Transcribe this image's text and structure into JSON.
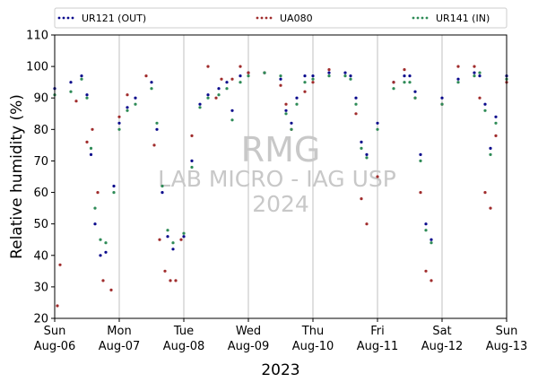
{
  "chart_data": {
    "type": "scatter",
    "xlabel": "2023",
    "ylabel": "Relative humidity (%)",
    "ylim": [
      20,
      110
    ],
    "yticks": [
      20,
      30,
      40,
      50,
      60,
      70,
      80,
      90,
      100,
      110
    ],
    "xlim": [
      "2023-08-06",
      "2023-08-13"
    ],
    "xticks": [
      {
        "date": "2023-08-06",
        "day": "Sun",
        "label": "Aug-06"
      },
      {
        "date": "2023-08-07",
        "day": "Mon",
        "label": "Aug-07"
      },
      {
        "date": "2023-08-08",
        "day": "Tue",
        "label": "Aug-08"
      },
      {
        "date": "2023-08-09",
        "day": "Wed",
        "label": "Aug-09"
      },
      {
        "date": "2023-08-10",
        "day": "Thu",
        "label": "Aug-10"
      },
      {
        "date": "2023-08-11",
        "day": "Fri",
        "label": "Aug-11"
      },
      {
        "date": "2023-08-12",
        "day": "Sat",
        "label": "Aug-12"
      },
      {
        "date": "2023-08-13",
        "day": "Sun",
        "label": "Aug-13"
      }
    ],
    "grid": "vertical",
    "legend_position": "top",
    "watermark": [
      "RMG",
      "LAB MICRO - IAG USP",
      "2024"
    ],
    "series": [
      {
        "name": "UR121 (OUT)",
        "color": "#0a0a8c",
        "x": [
          "2023-08-06 00:00",
          "2023-08-06 06:00",
          "2023-08-06 10:00",
          "2023-08-06 12:00",
          "2023-08-06 13:30",
          "2023-08-06 15:00",
          "2023-08-06 17:00",
          "2023-08-06 19:00",
          "2023-08-06 22:00",
          "2023-08-07 00:00",
          "2023-08-07 03:00",
          "2023-08-07 06:00",
          "2023-08-07 12:00",
          "2023-08-07 14:00",
          "2023-08-07 16:00",
          "2023-08-07 18:00",
          "2023-08-07 20:00",
          "2023-08-08 00:00",
          "2023-08-08 03:00",
          "2023-08-08 06:00",
          "2023-08-08 09:00",
          "2023-08-08 13:00",
          "2023-08-08 16:00",
          "2023-08-08 18:00",
          "2023-08-08 21:00",
          "2023-08-09 00:00",
          "2023-08-09 06:00",
          "2023-08-09 12:00",
          "2023-08-09 14:00",
          "2023-08-09 16:00",
          "2023-08-09 18:00",
          "2023-08-09 21:00",
          "2023-08-10 00:00",
          "2023-08-10 06:00",
          "2023-08-10 12:00",
          "2023-08-10 14:00",
          "2023-08-10 16:00",
          "2023-08-10 18:00",
          "2023-08-10 20:00",
          "2023-08-11 00:00",
          "2023-08-11 06:00",
          "2023-08-11 10:00",
          "2023-08-11 12:00",
          "2023-08-11 14:00",
          "2023-08-11 16:00",
          "2023-08-11 18:00",
          "2023-08-11 20:00",
          "2023-08-12 00:00",
          "2023-08-12 06:00",
          "2023-08-12 12:00",
          "2023-08-12 14:00",
          "2023-08-12 16:00",
          "2023-08-12 18:00",
          "2023-08-12 20:00",
          "2023-08-13 00:00"
        ],
        "y": [
          93,
          95,
          97,
          91,
          72,
          50,
          40,
          41,
          62,
          82,
          87,
          90,
          95,
          80,
          60,
          46,
          42,
          46,
          70,
          88,
          91,
          93,
          95,
          86,
          97,
          98,
          98,
          96,
          86,
          82,
          90,
          97,
          97,
          98,
          98,
          97,
          90,
          76,
          72,
          82,
          95,
          97,
          97,
          92,
          72,
          50,
          45,
          90,
          96,
          98,
          97,
          88,
          74,
          84,
          97
        ]
      },
      {
        "name": "UA080",
        "color": "#a02c2c",
        "x": [
          "2023-08-06 01:00",
          "2023-08-06 02:00",
          "2023-08-06 08:00",
          "2023-08-06 12:00",
          "2023-08-06 14:00",
          "2023-08-06 16:00",
          "2023-08-06 18:00",
          "2023-08-06 21:00",
          "2023-08-07 00:00",
          "2023-08-07 03:00",
          "2023-08-07 10:00",
          "2023-08-07 13:00",
          "2023-08-07 15:00",
          "2023-08-07 17:00",
          "2023-08-07 19:00",
          "2023-08-07 21:00",
          "2023-08-07 23:00",
          "2023-08-08 03:00",
          "2023-08-08 09:00",
          "2023-08-08 12:00",
          "2023-08-08 14:00",
          "2023-08-08 18:00",
          "2023-08-08 21:00",
          "2023-08-09 00:00",
          "2023-08-09 06:00",
          "2023-08-09 12:00",
          "2023-08-09 14:00",
          "2023-08-09 16:00",
          "2023-08-09 21:00",
          "2023-08-10 00:00",
          "2023-08-10 06:00",
          "2023-08-10 16:00",
          "2023-08-10 18:00",
          "2023-08-10 20:00",
          "2023-08-11 00:00",
          "2023-08-11 06:00",
          "2023-08-11 10:00",
          "2023-08-11 14:00",
          "2023-08-11 16:00",
          "2023-08-11 18:00",
          "2023-08-11 20:00",
          "2023-08-12 00:00",
          "2023-08-12 06:00",
          "2023-08-12 12:00",
          "2023-08-12 14:00",
          "2023-08-12 16:00",
          "2023-08-12 18:00",
          "2023-08-12 20:00",
          "2023-08-13 00:00"
        ],
        "y": [
          24,
          37,
          89,
          76,
          80,
          60,
          32,
          29,
          84,
          91,
          97,
          75,
          45,
          35,
          32,
          32,
          45,
          78,
          100,
          90,
          96,
          96,
          100,
          98,
          98,
          94,
          88,
          80,
          92,
          95,
          99,
          85,
          58,
          50,
          65,
          95,
          99,
          90,
          60,
          35,
          32,
          88,
          100,
          100,
          90,
          60,
          55,
          78,
          95
        ]
      },
      {
        "name": "UR141 (IN)",
        "color": "#2e8b57",
        "x": [
          "2023-08-06 00:00",
          "2023-08-06 06:00",
          "2023-08-06 10:00",
          "2023-08-06 12:00",
          "2023-08-06 13:30",
          "2023-08-06 15:00",
          "2023-08-06 17:00",
          "2023-08-06 19:00",
          "2023-08-06 22:00",
          "2023-08-07 00:00",
          "2023-08-07 03:00",
          "2023-08-07 06:00",
          "2023-08-07 12:00",
          "2023-08-07 14:00",
          "2023-08-07 16:00",
          "2023-08-07 18:00",
          "2023-08-07 20:00",
          "2023-08-08 00:00",
          "2023-08-08 03:00",
          "2023-08-08 06:00",
          "2023-08-08 09:00",
          "2023-08-08 13:00",
          "2023-08-08 16:00",
          "2023-08-08 18:00",
          "2023-08-08 21:00",
          "2023-08-09 00:00",
          "2023-08-09 06:00",
          "2023-08-09 12:00",
          "2023-08-09 14:00",
          "2023-08-09 16:00",
          "2023-08-09 18:00",
          "2023-08-09 21:00",
          "2023-08-10 00:00",
          "2023-08-10 06:00",
          "2023-08-10 12:00",
          "2023-08-10 14:00",
          "2023-08-10 16:00",
          "2023-08-10 18:00",
          "2023-08-10 20:00",
          "2023-08-11 00:00",
          "2023-08-11 06:00",
          "2023-08-11 10:00",
          "2023-08-11 12:00",
          "2023-08-11 14:00",
          "2023-08-11 16:00",
          "2023-08-11 18:00",
          "2023-08-11 20:00",
          "2023-08-12 00:00",
          "2023-08-12 06:00",
          "2023-08-12 12:00",
          "2023-08-12 14:00",
          "2023-08-12 16:00",
          "2023-08-12 18:00",
          "2023-08-12 20:00",
          "2023-08-13 00:00"
        ],
        "y": [
          91,
          92,
          96,
          90,
          74,
          55,
          45,
          44,
          60,
          80,
          86,
          88,
          93,
          82,
          62,
          48,
          44,
          47,
          68,
          87,
          90,
          91,
          93,
          83,
          95,
          97,
          98,
          97,
          85,
          80,
          88,
          95,
          96,
          97,
          97,
          96,
          88,
          74,
          71,
          80,
          93,
          95,
          95,
          90,
          70,
          48,
          44,
          88,
          95,
          97,
          98,
          86,
          72,
          82,
          96
        ]
      }
    ]
  }
}
